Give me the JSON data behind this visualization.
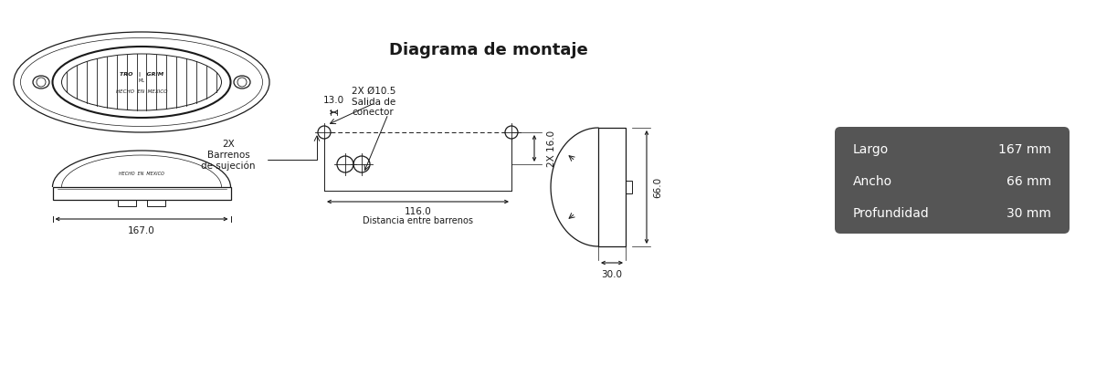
{
  "bg_color": "#ffffff",
  "line_color": "#1a1a1a",
  "dim_fontsize": 7.5,
  "label_fontsize": 8,
  "title_fontsize": 13,
  "spec_bg_color": "#555555",
  "spec_text_color": "#ffffff",
  "spec_labels": [
    "Largo",
    "Ancho",
    "Profundidad"
  ],
  "spec_values": [
    "167 mm",
    "66 mm",
    "30 mm"
  ],
  "dim_167": "167.0",
  "dim_66": "66.0",
  "dim_30": "30.0",
  "dim_13": "13.0",
  "dim_116": "116.0",
  "dim_2x16": "2X 16.0",
  "title": "Diagrama de montaje",
  "label_2x_hole": "2X Ø10.5\nSalida de\nconector",
  "label_barrenos": "2X\nBarrenos\nde sujeción",
  "label_distancia": "Distancia entre barrenos"
}
